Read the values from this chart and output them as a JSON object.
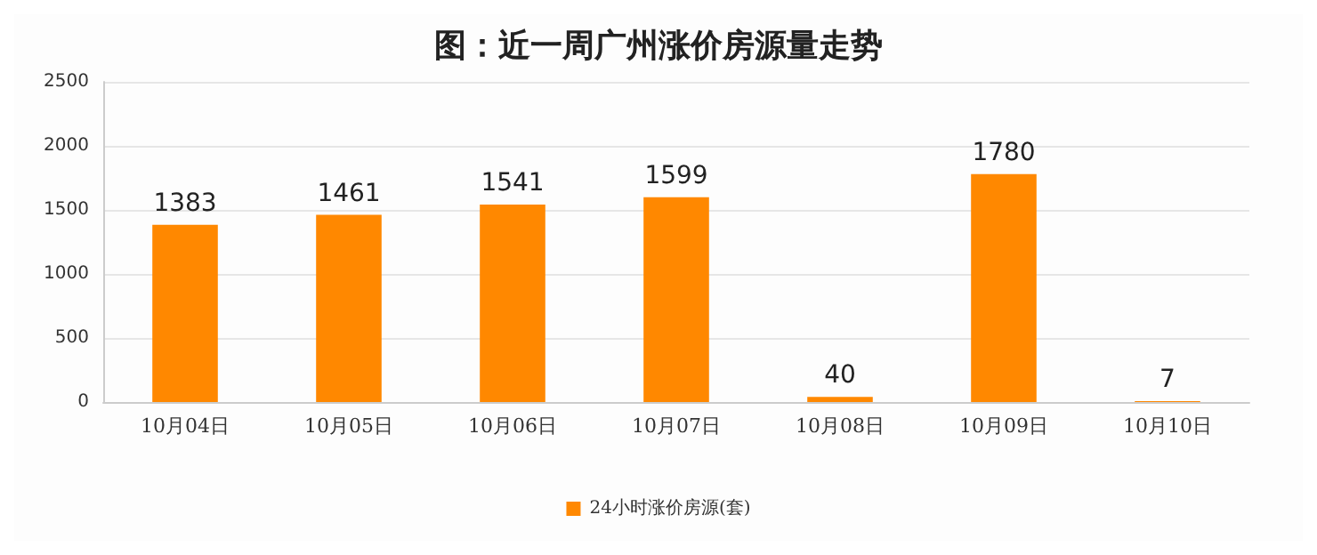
{
  "chart_data": {
    "type": "bar",
    "title": "图：近一周广州涨价房源量走势",
    "categories": [
      "10月04日",
      "10月05日",
      "10月06日",
      "10月07日",
      "10月08日",
      "10月09日",
      "10月10日"
    ],
    "series": [
      {
        "name": "24小时涨价房源(套)",
        "color": "#ff8800",
        "values": [
          1383,
          1461,
          1541,
          1599,
          40,
          1780,
          7
        ]
      }
    ],
    "ylim": [
      0,
      2500
    ],
    "yticks": [
      0,
      500,
      1000,
      1500,
      2000,
      2500
    ],
    "grid": "y",
    "legend": "bottom",
    "data_labels": true
  }
}
